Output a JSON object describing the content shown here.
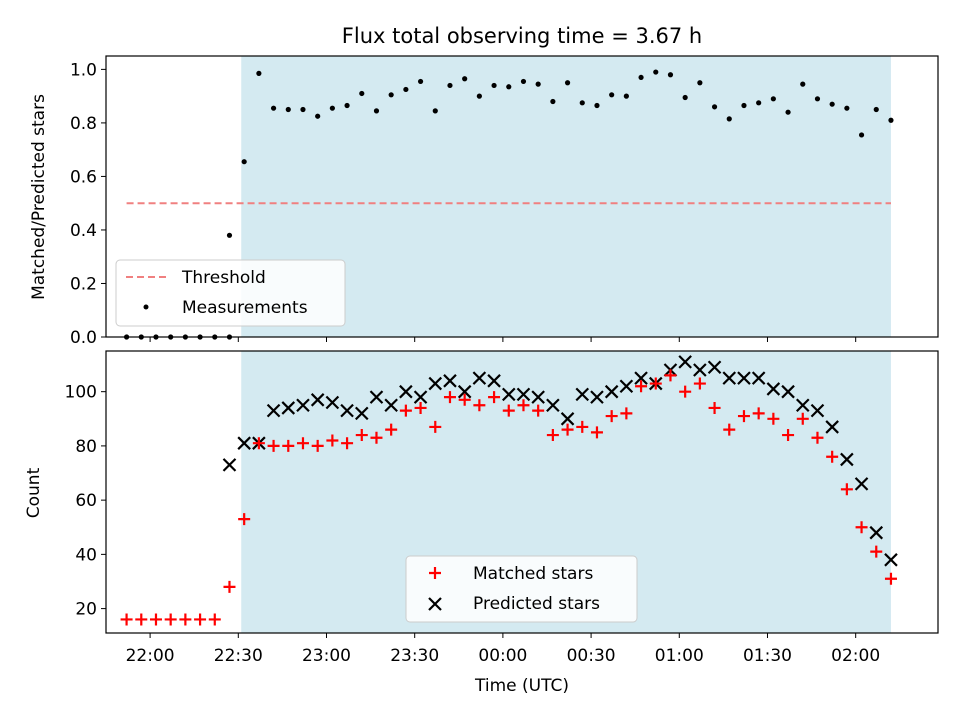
{
  "chart_data": [
    {
      "type": "scatter",
      "title": "Flux total observing time = 3.67 h",
      "xlabel": "",
      "ylabel": "Matched/Predicted stars",
      "ylim": [
        0,
        1.05
      ],
      "yticks": [
        "0.0",
        "0.2",
        "0.4",
        "0.6",
        "0.8",
        "1.0"
      ],
      "grid": false,
      "legend_position": "lower-left",
      "shaded_interval": {
        "start": "22:31",
        "end": "02:12",
        "color": "#d4eaf1"
      },
      "threshold": {
        "name": "Threshold",
        "value": 0.5,
        "x_start": "21:52",
        "x_end": "02:12",
        "color": "#f08080",
        "style": "dashed"
      },
      "series": [
        {
          "name": "Measurements",
          "marker": "dot",
          "color": "#000000",
          "x": [
            "21:52",
            "21:57",
            "22:02",
            "22:07",
            "22:12",
            "22:17",
            "22:22",
            "22:27",
            "22:27",
            "22:32",
            "22:37",
            "22:42",
            "22:47",
            "22:52",
            "22:57",
            "23:02",
            "23:07",
            "23:12",
            "23:17",
            "23:22",
            "23:27",
            "23:32",
            "23:37",
            "23:42",
            "23:47",
            "23:52",
            "23:57",
            "00:02",
            "00:07",
            "00:12",
            "00:17",
            "00:22",
            "00:27",
            "00:32",
            "00:37",
            "00:42",
            "00:47",
            "00:52",
            "00:57",
            "01:02",
            "01:07",
            "01:12",
            "01:17",
            "01:22",
            "01:27",
            "01:32",
            "01:37",
            "01:42",
            "01:47",
            "01:52",
            "01:57",
            "02:02",
            "02:07",
            "02:12"
          ],
          "y": [
            0,
            0,
            0,
            0,
            0,
            0,
            0,
            0,
            0.38,
            0.655,
            0.985,
            0.855,
            0.85,
            0.85,
            0.825,
            0.855,
            0.865,
            0.91,
            0.845,
            0.905,
            0.925,
            0.955,
            0.845,
            0.94,
            0.965,
            0.9,
            0.94,
            0.935,
            0.955,
            0.945,
            0.88,
            0.95,
            0.875,
            0.865,
            0.905,
            0.9,
            0.97,
            0.99,
            0.98,
            0.895,
            0.95,
            0.86,
            0.815,
            0.865,
            0.875,
            0.89,
            0.84,
            0.945,
            0.89,
            0.87,
            0.855,
            0.755,
            0.85,
            0.81
          ]
        }
      ]
    },
    {
      "type": "scatter",
      "title": "",
      "xlabel": "Time (UTC)",
      "ylabel": "Count",
      "ylim": [
        11,
        115
      ],
      "yticks": [
        "20",
        "40",
        "60",
        "80",
        "100"
      ],
      "xticks": [
        "22:00",
        "22:30",
        "23:00",
        "23:30",
        "00:00",
        "00:30",
        "01:00",
        "01:30",
        "02:00"
      ],
      "grid": false,
      "legend_position": "lower-center",
      "shaded_interval": {
        "start": "22:31",
        "end": "02:12",
        "color": "#d4eaf1"
      },
      "x": [
        "21:52",
        "21:57",
        "22:02",
        "22:07",
        "22:12",
        "22:17",
        "22:22",
        "22:27",
        "22:32",
        "22:37",
        "22:42",
        "22:47",
        "22:52",
        "22:57",
        "23:02",
        "23:07",
        "23:12",
        "23:17",
        "23:22",
        "23:27",
        "23:32",
        "23:37",
        "23:42",
        "23:47",
        "23:52",
        "23:57",
        "00:02",
        "00:07",
        "00:12",
        "00:17",
        "00:22",
        "00:27",
        "00:32",
        "00:37",
        "00:42",
        "00:47",
        "00:52",
        "00:57",
        "01:02",
        "01:07",
        "01:12",
        "01:17",
        "01:22",
        "01:27",
        "01:32",
        "01:37",
        "01:42",
        "01:47",
        "01:52",
        "01:57",
        "02:02",
        "02:07",
        "02:12"
      ],
      "series": [
        {
          "name": "Matched stars",
          "marker": "plus",
          "color": "#ff0000",
          "values": [
            16,
            16,
            16,
            16,
            16,
            16,
            16,
            28,
            53,
            81,
            80,
            80,
            81,
            80,
            82,
            81,
            84,
            83,
            86,
            93,
            94,
            87,
            98,
            97,
            95,
            98,
            93,
            95,
            93,
            84,
            86,
            87,
            85,
            91,
            92,
            102,
            103,
            106,
            100,
            103,
            94,
            86,
            91,
            92,
            90,
            84,
            90,
            83,
            76,
            64,
            50,
            41,
            31
          ]
        },
        {
          "name": "Predicted stars",
          "marker": "x",
          "color": "#000000",
          "values": [
            null,
            null,
            null,
            null,
            null,
            null,
            null,
            73,
            81,
            81,
            93,
            94,
            95,
            97,
            96,
            93,
            92,
            98,
            95,
            100,
            98,
            103,
            104,
            100,
            105,
            104,
            99,
            99,
            98,
            95,
            90,
            99,
            98,
            100,
            102,
            105,
            103,
            108,
            111,
            108,
            109,
            105,
            105,
            105,
            101,
            100,
            95,
            93,
            87,
            75,
            66,
            48,
            38
          ]
        }
      ]
    }
  ]
}
